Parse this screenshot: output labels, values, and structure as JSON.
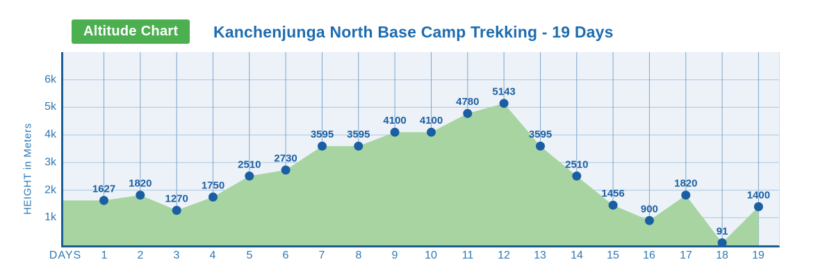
{
  "header": {
    "badge_label": "Altitude Chart",
    "title": "Kanchenjunga North Base Camp Trekking - 19 Days"
  },
  "chart_data": {
    "type": "area",
    "title": "Kanchenjunga North Base Camp Trekking - 19 Days",
    "xlabel": "DAYS",
    "ylabel": "HEIGHT in Meters",
    "x": [
      1,
      2,
      3,
      4,
      5,
      6,
      7,
      8,
      9,
      10,
      11,
      12,
      13,
      14,
      15,
      16,
      17,
      18,
      19
    ],
    "values": [
      1627,
      1820,
      1270,
      1750,
      2510,
      2730,
      3595,
      3595,
      4100,
      4100,
      4780,
      5143,
      3595,
      2510,
      1456,
      900,
      1820,
      91,
      1400
    ],
    "ylim": [
      0,
      7000
    ],
    "yticks": [
      {
        "value": 1000,
        "label": "1k"
      },
      {
        "value": 2000,
        "label": "2k"
      },
      {
        "value": 3000,
        "label": "3k"
      },
      {
        "value": 4000,
        "label": "4k"
      },
      {
        "value": 5000,
        "label": "5k"
      },
      {
        "value": 6000,
        "label": "6k"
      }
    ],
    "grid": true,
    "legend": false,
    "area_extends_to_left_axis": true
  },
  "colors": {
    "badge_background": "#4caf50",
    "badge_text": "#ffffff",
    "title": "#1d6cb0",
    "plot_background": "#edf2f8",
    "axis": "#1a5d94",
    "grid_horizontal": "#a9c6de",
    "grid_vertical": "#7aa6cd",
    "area_fill": "#a7d4a0",
    "point": "#1b5fa3",
    "value_label": "#1b5fa3",
    "tick_label": "#2e78b5"
  }
}
